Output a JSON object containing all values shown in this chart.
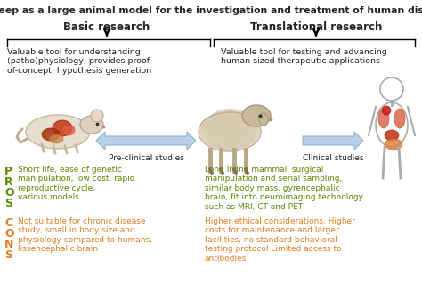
{
  "title": "The sheep as a large animal model for the investigation and treatment of human disorders",
  "title_fontsize": 7.8,
  "bg_color": "#ffffff",
  "basic_research_label": "Basic research",
  "translational_research_label": "Translational research",
  "left_box_text": "Valuable tool for understanding\n(patho)physiology, provides proof-\nof-concept, hypothesis generation",
  "right_box_text": "Valuable tool for testing and advancing\nhuman sized therapeutic applications",
  "pre_clinical_label": "Pre-clinical studies",
  "clinical_label": "Clinical studies",
  "pros_color": "#5a8a00",
  "cons_color": "#e08020",
  "mouse_pros_text": "Short life, ease of genetic\nmanipulation, low cost, rapid\nreproductive cycle,\nvarious models",
  "mouse_cons_text": "Not suitable for chronic disease\nstudy, small in body size and\nphysiology compared to humans,\nlissencephalic brain",
  "sheep_pros_text": "Long living mammal, surgical\nmanipulation and serial sampling,\nsimilar body mass, gyrencephalic\nbrain, fit into neuroimaging technology\nsuch as MRI, CT and PET",
  "sheep_cons_text": "Higher ethical considerations, Higher\ncosts for maintenance and larger\nfacilities, no standard behavioral\ntesting protocol Limited access to\nantibodies",
  "arrow_color": "#b8d0e8",
  "text_color": "#222222",
  "label_fontsize": 7.5,
  "body_fontsize": 6.5,
  "pros_letter_fontsize": 9,
  "cons_letter_fontsize": 9
}
